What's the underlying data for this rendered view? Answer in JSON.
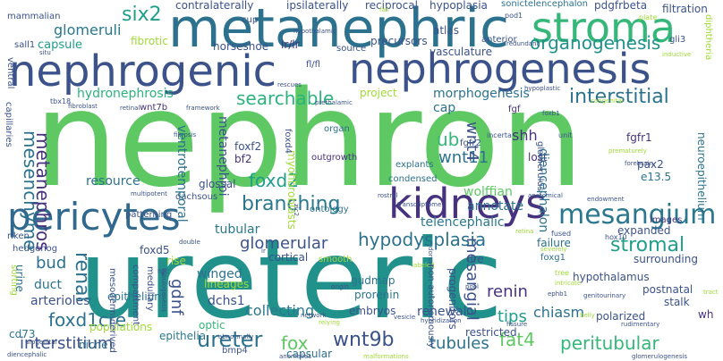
{
  "words": {
    "nephron": "nephron",
    "ureteric": "ureteric",
    "metanephric": "metanephric",
    "nephrogenic": "nephrogenic",
    "nephrogenesis": "nephrogenesis",
    "stroma": "stroma",
    "kidneys": "kidneys",
    "pericytes": "pericytes",
    "mesangium": "mesangium",
    "mesenchyme": "mesenchyme",
    "metanephros": "metanephros",
    "six2": "six2",
    "glomeruli": "glomeruli",
    "capsule": "capsule",
    "organogenesis": "organogenesis",
    "interstitial": "interstitial",
    "searchable": "searchable",
    "hydronephrosis": "hydronephrosis",
    "wnt4": "wnt4",
    "wnt11": "wnt11",
    "ub": "ub",
    "foxd2": "foxd2",
    "branching": "branching",
    "hypodysplasia": "hypodysplasia",
    "glomerular": "glomerular",
    "stromal": "stromal",
    "renal": "renal",
    "bud": "bud",
    "foxd1cre": "foxd1cre",
    "interstitium": "interstitium",
    "ureter": "ureter",
    "fox": "fox",
    "wnt9b": "wnt9b",
    "tubules": "tubules",
    "fat4": "fat4",
    "peritubular": "peritubular",
    "renin": "renin",
    "tips": "tips",
    "chiasm": "chiasm",
    "mesangial": "mesangial",
    "wolffian": "wolffian",
    "annotate": "annotate",
    "telencephalic": "telencephalic",
    "diencephalon": "diencephalon",
    "resource": "resource",
    "bf2": "bf2",
    "foxf2": "foxf2",
    "metanephroi": "metanephroi",
    "glossal": "glossal",
    "dachsous": "dachsous",
    "hypothalamus": "hypothalamus",
    "winged": "winged",
    "collecting": "collecting",
    "gdnf": "gdnf",
    "dchs1": "dchs1",
    "duct": "duct",
    "arterioles": "arterioles",
    "urine": "urine",
    "optic": "optic",
    "lineages": "lineages",
    "epithelium": "epithelium",
    "cortical": "cortical",
    "shh": "shh",
    "morphogenesis": "morphogenesis",
    "project": "project",
    "contralaterally": "contralaterally",
    "ipsilaterally": "ipsilaterally",
    "reciprocal": "reciprocal",
    "hypoplasia": "hypoplasia",
    "sonictelencephalon": "sonictelencephalon",
    "pdgfrbeta": "pdgfrbeta",
    "filtration": "filtration",
    "mammalian": "mammalian",
    "diphtheria": "diphtheria",
    "neuroepithelium": "neuroepithelium",
    "atlas": "atlas",
    "anterior": "anterior",
    "gli3": "gli3",
    "horseshoe": "horseshoe",
    "lr_lr": "lr/lr",
    "fibrotic": "fibrotic",
    "sall1": "sall1",
    "source": "source",
    "precursors": "precursors",
    "vasculature": "vasculature",
    "fl_fl": "fl/fl",
    "ventral": "ventral",
    "cap": "cap",
    "fgf": "fgf",
    "wnt7b": "wnt7b",
    "ventrotemporal": "ventrotemporal",
    "myofibroblasts": "myofibroblasts",
    "fgfr1": "fgfr1",
    "pax2": "pax2",
    "e13_5": "e13.5",
    "images": "images",
    "lost": "lost",
    "glomerulus": "glomerulus",
    "fgfr2": "fgfr2",
    "outgrowth": "outgrowth",
    "condensed": "condensed",
    "explants": "explants",
    "patterning": "patterning",
    "tubular": "tubular",
    "mesoderm_derived": "mesoderm-derived",
    "ontology": "ontology",
    "riken": "riken",
    "hedgehog": "hedgehog",
    "foxd5": "foxd5",
    "rise": "rise",
    "failure": "failure",
    "expanded": "expanded",
    "surrounding": "surrounding",
    "foxg1": "foxg1",
    "cre": "cre",
    "smooth": "smooth",
    "progenitors": "progenitors",
    "gudmap": "gudmap",
    "prorenin": "prorenin",
    "renewal": "renewal",
    "polarized": "polarized",
    "postnatal": "postnatal",
    "stalk": "stalk",
    "wh": "wh",
    "embryos": "embryos",
    "restricted": "restricted",
    "populations": "populations",
    "cd73": "cd73",
    "niche": "niche",
    "epithelia": "epithelia",
    "bmp4": "bmp4",
    "capsular": "capsular",
    "organ": "organ",
    "foxd4": "foxd4",
    "rgc": "rgc",
    "compartment": "compartment",
    "medullary": "medullary",
    "sorting": "sorting",
    "capillaries": "capillaries",
    "tbx18": "tbx18",
    "foxb1": "foxb1",
    "multipotent": "multipotent",
    "non_autonomously": "non-autonomously",
    "cup": "cup",
    "fail": "fail",
    "pod1": "pod1",
    "plate": "plate",
    "situ": "situ",
    "hypothalamic": "hypothalamic",
    "redundant": "redundant",
    "inductive": "inductive",
    "fibroblast": "fibroblast",
    "retinal": "retinal",
    "framework": "framework",
    "rescues": "rescues",
    "prethalamic": "prethalamic",
    "hypoplastic": "hypoplastic",
    "congenital": "congenital",
    "fibrosis": "fibrosis",
    "incerta": "incerta",
    "unit": "unit",
    "prematurely": "prematurely",
    "forebrain": "forebrain",
    "zic2": "zic2",
    "transcriptome": "transcriptome",
    "rostral": "rostral",
    "anatomical": "anatomical",
    "endowment": "endowment",
    "dorsal": "dorsal",
    "double": "double",
    "fused": "fused",
    "retina": "retina",
    "severely": "severely",
    "hox10": "hox10",
    "tubulogenesis": "tubulogenesis",
    "labeled": "labeled",
    "origin": "origin",
    "intricate": "intricate",
    "tree": "tree",
    "genitourinary": "genitourinary",
    "ephb1": "ephb1",
    "belly": "belly",
    "pool": "pool",
    "urogenital": "urogenital",
    "diencephalic": "diencephalic",
    "network": "network",
    "relying": "relying",
    "vesicle": "vesicle",
    "hybridization": "hybridization",
    "fissure": "fissure",
    "rudimentary": "rudimentary",
    "abnormally": "abnormally",
    "anomalies": "anomalies",
    "malformations": "malformations",
    "glomerulogenesis": "glomerulogenesis",
    "tract": "tract",
    "lr": "lr"
  }
}
